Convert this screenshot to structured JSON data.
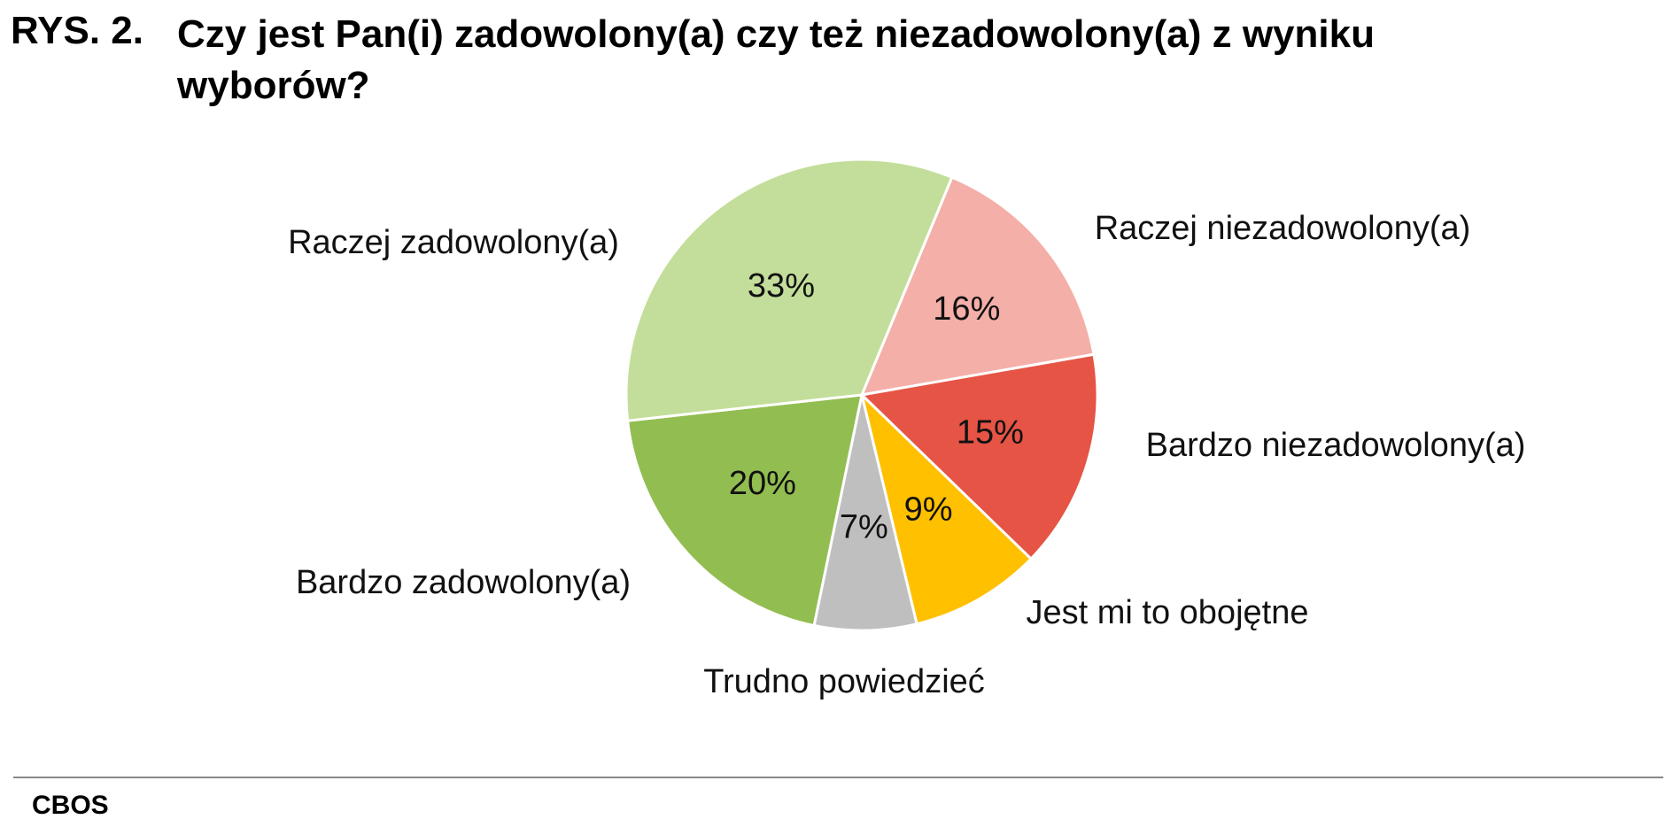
{
  "chart_data": {
    "type": "pie",
    "figure_label": "RYS. 2.",
    "title": "Czy jest Pan(i) zadowolony(a) czy też niezadowolony(a) z wyniku wyborów?",
    "categories": [
      "Raczej niezadowolony(a)",
      "Bardzo niezadowolony(a)",
      "Jest mi to obojętne",
      "Trudno powiedzieć",
      "Bardzo zadowolony(a)",
      "Raczej zadowolony(a)"
    ],
    "values": [
      16,
      15,
      9,
      7,
      20,
      33
    ],
    "value_labels": [
      "16%",
      "15%",
      "9%",
      "7%",
      "20%",
      "33%"
    ],
    "colors": [
      "#f4afa8",
      "#e55445",
      "#ffc000",
      "#bfbfbf",
      "#92bd50",
      "#c3de9a"
    ],
    "source": "CBOS"
  }
}
